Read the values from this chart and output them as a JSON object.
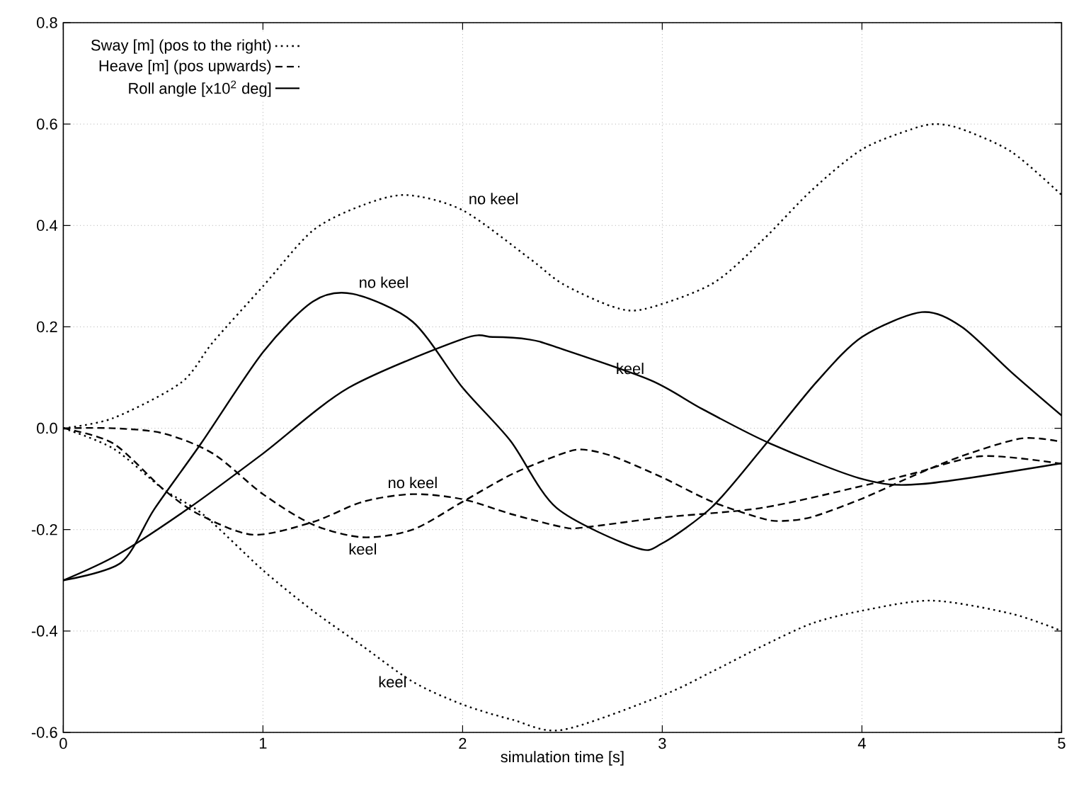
{
  "chart_data": {
    "type": "line",
    "xlabel": "simulation time [s]",
    "xlim": [
      0,
      5
    ],
    "ylim": [
      -0.6,
      0.8
    ],
    "xticks": [
      0,
      1,
      2,
      3,
      4,
      5
    ],
    "yticks": [
      -0.6,
      -0.4,
      -0.2,
      {
        "value": 0,
        "label": "0.0"
      },
      0.2,
      0.4,
      0.6,
      0.8
    ],
    "grid": true,
    "legend": "top left",
    "series": [
      {
        "name": "Sway [m] (pos to the right)",
        "color": "#000000",
        "line_style": "dotted",
        "x": [
          0,
          0.25,
          0.59,
          0.75,
          1,
          1.25,
          1.5,
          1.72,
          2,
          2.335,
          2.5,
          2.75,
          2.91,
          3.25,
          3.5,
          3.75,
          4,
          4.25,
          4.37,
          4.5,
          4.75,
          5
        ],
        "values": [
          0,
          0.02,
          0.09,
          0.17,
          0.28,
          0.39,
          0.44,
          0.46,
          0.43,
          0.335,
          0.285,
          0.24,
          0.235,
          0.285,
          0.37,
          0.47,
          0.55,
          0.59,
          0.6,
          0.59,
          0.545,
          0.46
        ]
      },
      {
        "color": "#000000",
        "line_style": "dotted",
        "x": [
          0,
          0.25,
          0.5,
          0.7,
          1,
          1.25,
          1.5,
          1.75,
          2,
          2.25,
          2.5,
          3,
          3.25,
          3.5,
          3.75,
          4,
          4.35,
          4.75,
          5
        ],
        "values": [
          0,
          -0.04,
          -0.12,
          -0.17,
          -0.28,
          -0.36,
          -0.43,
          -0.5,
          -0.545,
          -0.575,
          -0.595,
          -0.527,
          -0.48,
          -0.43,
          -0.385,
          -0.36,
          -0.34,
          -0.366,
          -0.4
        ]
      },
      {
        "name": "Heave [m] (pos upwards)",
        "color": "#000000",
        "line_style": "dashed",
        "x": [
          0,
          0.25,
          0.5,
          0.68,
          0.95,
          1.25,
          1.5,
          1.75,
          2,
          2.25,
          2.5,
          2.6,
          3,
          3.5,
          4,
          4.25,
          4.6,
          5
        ],
        "values": [
          0,
          -0.03,
          -0.12,
          -0.17,
          -0.21,
          -0.185,
          -0.145,
          -0.13,
          -0.14,
          -0.17,
          -0.195,
          -0.196,
          -0.176,
          -0.157,
          -0.114,
          -0.09,
          -0.055,
          -0.07
        ]
      },
      {
        "color": "#000000",
        "line_style": "dashed",
        "x": [
          0,
          0.25,
          0.5,
          0.75,
          1,
          1.25,
          1.5,
          1.75,
          2,
          2.25,
          2.5,
          2.6,
          2.75,
          3,
          3.25,
          3.5,
          3.6,
          3.75,
          4,
          4.25,
          4.5,
          4.8,
          5
        ],
        "values": [
          0,
          0,
          -0.01,
          -0.05,
          -0.13,
          -0.19,
          -0.215,
          -0.2,
          -0.145,
          -0.09,
          -0.05,
          -0.042,
          -0.055,
          -0.097,
          -0.145,
          -0.178,
          -0.183,
          -0.175,
          -0.139,
          -0.095,
          -0.055,
          -0.02,
          -0.027
        ]
      },
      {
        "name": "Roll angle [x10$^{2}$ deg]",
        "color": "#000000",
        "line_style": "solid",
        "x": [
          0,
          0.29,
          0.455,
          0.69,
          1,
          1.25,
          1.45,
          1.75,
          2,
          2.24,
          2.47,
          2.87,
          3,
          3.25,
          3.5,
          3.77,
          4,
          4.3,
          4.5,
          4.75,
          5
        ],
        "values": [
          -0.3,
          -0.265,
          -0.16,
          -0.03,
          0.15,
          0.25,
          0.265,
          0.21,
          0.08,
          -0.025,
          -0.157,
          -0.236,
          -0.227,
          -0.155,
          -0.04,
          0.09,
          0.18,
          0.229,
          0.2,
          0.11,
          0.025
        ]
      },
      {
        "color": "#000000",
        "line_style": "solid",
        "x": [
          0,
          0.27,
          0.62,
          1,
          1.43,
          2,
          2.15,
          2.335,
          2.47,
          2.94,
          3.2,
          3.54,
          4,
          4.3,
          5
        ],
        "values": [
          -0.3,
          -0.25,
          -0.16,
          -0.05,
          0.08,
          0.176,
          0.18,
          0.175,
          0.16,
          0.095,
          0.038,
          -0.03,
          -0.1,
          -0.11,
          -0.069
        ]
      }
    ],
    "annotations": [
      {
        "text": "no keel",
        "x": 2,
        "y": 0.43
      },
      {
        "text": "no keel",
        "x": 1.45,
        "y": 0.265
      },
      {
        "text": "keel",
        "x": 2.94,
        "y": 0.095
      },
      {
        "text": "no keel",
        "x": 1.75,
        "y": -0.13
      },
      {
        "text": "keel",
        "x": 1.5,
        "y": -0.215
      },
      {
        "text": "keel",
        "x": 1.75,
        "y": -0.5
      }
    ]
  }
}
